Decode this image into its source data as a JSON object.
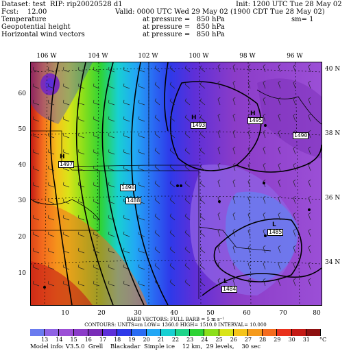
{
  "header": {
    "l1": "Dataset: test  RIP: rip20020528 d1",
    "l1r": "Init: 1200 UTC Tue 28 May 02",
    "l2": "Fcst:    12.00",
    "l2r": "Valid: 0000 UTC Wed 29 May 02 (1900 CDT Tue 28 May 02)",
    "fields": [
      {
        "name": "Temperature",
        "level": "at pressure =   850 hPa",
        "extra": "sm= 1"
      },
      {
        "name": "Geopotential height",
        "level": "at pressure =   850 hPa",
        "extra": ""
      },
      {
        "name": "Horizontal wind vectors",
        "level": "at pressure =   850 hPa",
        "extra": ""
      }
    ]
  },
  "map": {
    "lon_labels": [
      "106 W",
      "104 W",
      "102 W",
      "100 W",
      "98 W",
      "96 W"
    ],
    "lat_labels": [
      "40 N",
      "38 N",
      "36 N",
      "34 N"
    ],
    "x_ticks": [
      "10",
      "20",
      "30",
      "40",
      "50",
      "60",
      "70",
      "80"
    ],
    "y_ticks": [
      "60",
      "50",
      "40",
      "30",
      "20",
      "10"
    ],
    "height_labels": [
      "1493",
      "1495",
      "1490",
      "1497",
      "1490",
      "1488",
      "1485",
      "1484"
    ],
    "centers": [
      "H",
      "H",
      "H",
      "L",
      "L"
    ]
  },
  "notes": {
    "barb": "BARB VECTORS:  FULL BARB = 5 m s⁻¹",
    "contours": "CONTOURS:  UNITS=m    LOW=  1360.0      HIGH=  1510.0      INTERVAL=   10.000"
  },
  "colorbar": {
    "labels": [
      "13",
      "14",
      "15",
      "16",
      "17",
      "18",
      "19",
      "20",
      "21",
      "22",
      "23",
      "24",
      "25",
      "26",
      "27",
      "28",
      "29",
      "30",
      "31"
    ],
    "unit": "°C",
    "colors": [
      "#6a7bef",
      "#8f63e4",
      "#9b4fd6",
      "#8b3cc8",
      "#7a2db8",
      "#5d2fd8",
      "#2e39e9",
      "#2a6cf3",
      "#22a7f5",
      "#18d0d2",
      "#1ed48a",
      "#2ed335",
      "#8bdf1b",
      "#d9e418",
      "#f5c41a",
      "#f59a1c",
      "#f46b1e",
      "#e9311c",
      "#c41a15",
      "#8e1010"
    ]
  },
  "footer": "Model info: V3.5.0  Grell    Blackadar  Simple ice    12 km,  29 levels,    30 sec"
}
